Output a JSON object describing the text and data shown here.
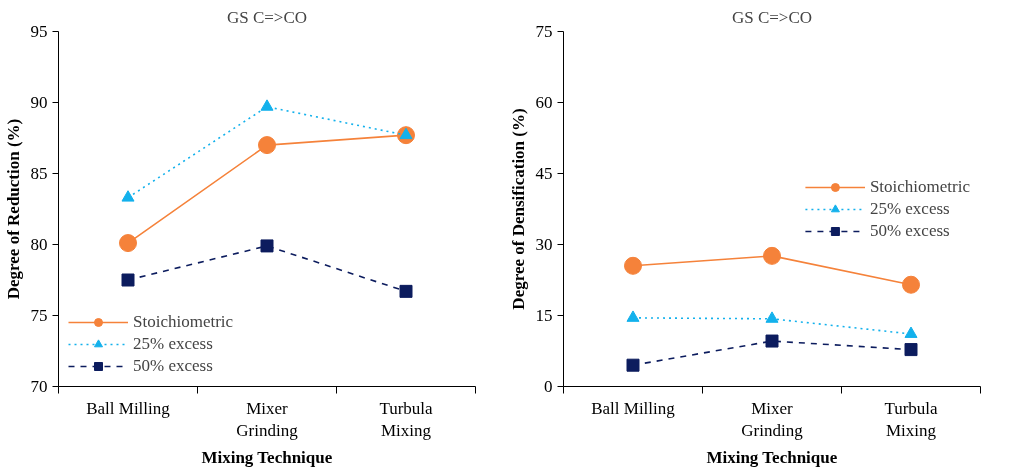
{
  "chart_data": [
    {
      "type": "line",
      "title": "GS C=>CO",
      "xlabel": "Mixing Technique",
      "ylabel": "Degree of Reduction (%)",
      "categories": [
        "Ball Milling",
        "Mixer\nGrinding",
        "Turbula\nMixing"
      ],
      "ylim": [
        70,
        95
      ],
      "yticks": [
        70,
        75,
        80,
        85,
        90,
        95
      ],
      "grid": false,
      "legend": "bottom left",
      "series": [
        {
          "name": "Stoichiometric",
          "color": "#f5823a",
          "marker": "circle",
          "line_style": "solid",
          "values": [
            80.1,
            87.0,
            87.7
          ]
        },
        {
          "name": "25% excess",
          "color": "#13b1ec",
          "marker": "triangle",
          "line_style": "dotted",
          "values": [
            83.3,
            89.7,
            87.7
          ]
        },
        {
          "name": "50% excess",
          "color": "#0c1c5e",
          "marker": "square",
          "line_style": "dashed",
          "values": [
            77.5,
            79.9,
            76.7
          ]
        }
      ]
    },
    {
      "type": "line",
      "title": "GS C=>CO",
      "xlabel": "Mixing Technique",
      "ylabel": "Degree of Densification (%)",
      "categories": [
        "Ball Milling",
        "Mixer\nGrinding",
        "Turbula\nMixing"
      ],
      "ylim": [
        0,
        75
      ],
      "yticks": [
        0,
        15,
        30,
        45,
        60,
        75
      ],
      "grid": false,
      "legend": "right",
      "series": [
        {
          "name": "Stoichiometric",
          "color": "#f5823a",
          "marker": "circle",
          "line_style": "solid",
          "values": [
            25.5,
            27.6,
            21.5
          ]
        },
        {
          "name": "25% excess",
          "color": "#13b1ec",
          "marker": "triangle",
          "line_style": "dotted",
          "values": [
            14.5,
            14.3,
            11.1
          ]
        },
        {
          "name": "50% excess",
          "color": "#0c1c5e",
          "marker": "square",
          "line_style": "dashed",
          "values": [
            4.5,
            9.6,
            7.8
          ]
        }
      ]
    }
  ]
}
